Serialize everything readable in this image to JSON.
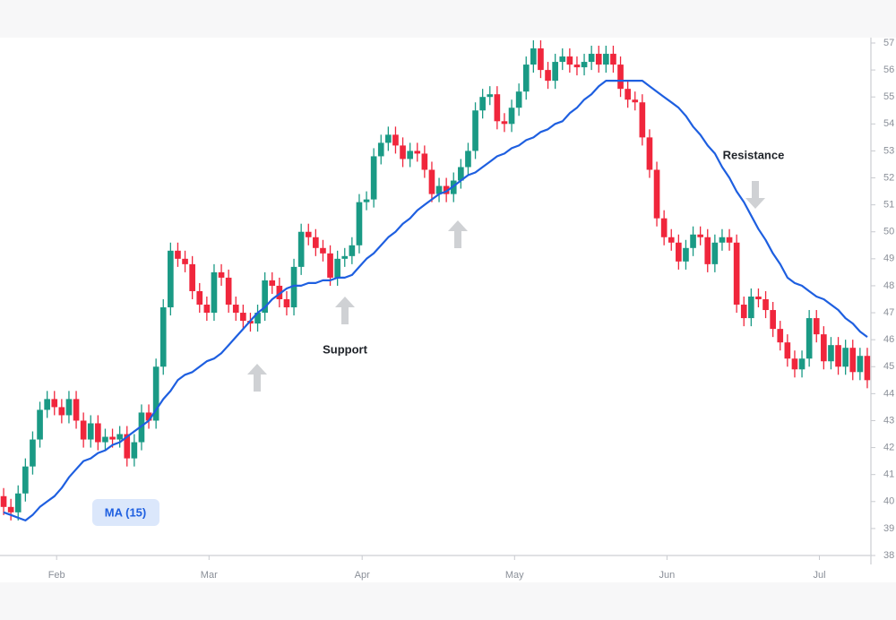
{
  "chart_data": {
    "type": "candlestick",
    "open": [
      40.2,
      39.8,
      39.6,
      40.3,
      41.3,
      42.3,
      43.4,
      43.8,
      43.5,
      43.2,
      43.8,
      43.0,
      42.3,
      42.9,
      42.2,
      42.4,
      42.3,
      42.5,
      41.6,
      42.2,
      43.3,
      43.0,
      45.0,
      47.2,
      49.3,
      49.0,
      48.8,
      47.8,
      47.3,
      47.0,
      48.5,
      48.3,
      47.3,
      47.0,
      46.7,
      46.6,
      47.0,
      48.2,
      48.0,
      47.5,
      47.2,
      48.7,
      50.0,
      49.8,
      49.4,
      49.2,
      48.3,
      49.0,
      49.1,
      49.5,
      51.1,
      51.2,
      52.8,
      53.3,
      53.6,
      53.2,
      52.7,
      53.0,
      52.9,
      52.3,
      51.4,
      51.7,
      51.4,
      51.9,
      52.4,
      53.0,
      54.5,
      55.0,
      55.1,
      54.1,
      54.0,
      54.6,
      55.2,
      56.2,
      56.8,
      56.0,
      55.6,
      56.3,
      56.5,
      56.2,
      56.1,
      56.3,
      56.6,
      56.2,
      56.6,
      56.2,
      55.3,
      54.9,
      54.8,
      53.5,
      52.3,
      50.5,
      49.8,
      49.6,
      48.9,
      49.4,
      49.9,
      49.8,
      48.8,
      49.6,
      49.8,
      49.6,
      47.3,
      46.8,
      47.6,
      47.5,
      47.1,
      46.4,
      45.9,
      45.3,
      44.9,
      45.3,
      46.8,
      46.2,
      45.2,
      45.8,
      45.0,
      45.7,
      44.8,
      45.4
    ],
    "high": [
      40.5,
      40.1,
      40.6,
      41.6,
      42.6,
      43.7,
      44.1,
      44.1,
      43.8,
      44.1,
      44.1,
      43.3,
      43.2,
      43.2,
      42.7,
      42.7,
      42.8,
      42.8,
      42.5,
      43.6,
      43.6,
      45.3,
      47.5,
      49.6,
      49.6,
      49.3,
      49.1,
      48.1,
      47.6,
      48.8,
      48.8,
      48.6,
      47.6,
      47.3,
      47.0,
      47.3,
      48.5,
      48.5,
      48.3,
      47.8,
      49.0,
      50.3,
      50.3,
      50.1,
      49.7,
      49.5,
      49.3,
      49.4,
      49.8,
      51.4,
      51.5,
      53.1,
      53.6,
      53.9,
      53.9,
      53.5,
      53.3,
      53.3,
      53.2,
      52.6,
      52.0,
      52.0,
      52.2,
      52.7,
      53.3,
      54.8,
      55.3,
      55.4,
      55.4,
      54.4,
      54.9,
      55.5,
      56.5,
      57.1,
      57.1,
      56.3,
      56.6,
      56.8,
      56.8,
      56.5,
      56.6,
      56.9,
      56.9,
      56.9,
      56.9,
      56.5,
      55.6,
      55.2,
      55.1,
      53.8,
      52.6,
      50.8,
      50.1,
      49.9,
      49.7,
      50.2,
      50.2,
      50.1,
      49.9,
      50.1,
      50.1,
      49.9,
      47.6,
      47.9,
      47.9,
      47.8,
      47.4,
      46.7,
      46.2,
      45.6,
      45.6,
      47.1,
      47.1,
      46.5,
      46.1,
      46.1,
      46.0,
      46.0,
      45.7,
      45.7
    ],
    "low": [
      39.5,
      39.3,
      39.3,
      40.0,
      41.0,
      42.0,
      43.1,
      43.2,
      42.9,
      42.9,
      42.7,
      42.0,
      42.0,
      41.9,
      41.9,
      42.0,
      42.0,
      41.3,
      41.3,
      41.9,
      42.7,
      42.7,
      44.7,
      46.9,
      48.7,
      48.5,
      47.5,
      47.0,
      46.7,
      46.7,
      48.0,
      47.0,
      46.7,
      46.4,
      46.3,
      46.3,
      46.7,
      47.7,
      47.2,
      46.9,
      46.9,
      48.4,
      49.5,
      49.1,
      48.9,
      48.0,
      48.0,
      48.7,
      48.8,
      49.2,
      50.8,
      50.9,
      52.5,
      53.0,
      52.9,
      52.4,
      52.4,
      52.6,
      52.0,
      51.1,
      51.1,
      51.1,
      51.1,
      51.6,
      52.1,
      52.7,
      54.2,
      54.7,
      53.8,
      53.7,
      53.7,
      54.3,
      54.9,
      55.9,
      55.7,
      55.3,
      55.3,
      56.0,
      55.9,
      55.8,
      55.8,
      56.0,
      55.9,
      55.9,
      55.9,
      55.0,
      54.6,
      54.5,
      53.2,
      52.0,
      50.2,
      49.5,
      49.3,
      48.6,
      48.6,
      49.1,
      49.5,
      48.5,
      48.5,
      49.3,
      49.3,
      47.0,
      46.5,
      46.5,
      47.2,
      46.8,
      46.1,
      45.6,
      45.0,
      44.6,
      44.6,
      45.0,
      45.9,
      44.9,
      44.9,
      44.7,
      44.7,
      44.5,
      44.5,
      44.2
    ],
    "close": [
      39.8,
      39.6,
      40.3,
      41.3,
      42.3,
      43.4,
      43.8,
      43.5,
      43.2,
      43.8,
      43.0,
      42.3,
      42.9,
      42.2,
      42.4,
      42.3,
      42.5,
      41.6,
      42.2,
      43.3,
      43.0,
      45.0,
      47.2,
      49.3,
      49.0,
      48.8,
      47.8,
      47.3,
      47.0,
      48.5,
      48.3,
      47.3,
      47.0,
      46.7,
      46.6,
      47.0,
      48.2,
      48.0,
      47.5,
      47.2,
      48.7,
      50.0,
      49.8,
      49.4,
      49.2,
      48.3,
      49.0,
      49.1,
      49.5,
      51.1,
      51.2,
      52.8,
      53.3,
      53.6,
      53.2,
      52.7,
      53.0,
      52.9,
      52.3,
      51.4,
      51.7,
      51.4,
      51.9,
      52.4,
      53.0,
      54.5,
      55.0,
      55.1,
      54.1,
      54.0,
      54.6,
      55.2,
      56.2,
      56.8,
      56.0,
      55.6,
      56.3,
      56.5,
      56.2,
      56.1,
      56.3,
      56.6,
      56.2,
      56.6,
      56.2,
      55.3,
      54.9,
      54.8,
      53.5,
      52.3,
      50.5,
      49.8,
      49.6,
      48.9,
      49.4,
      49.9,
      49.8,
      48.8,
      49.6,
      49.8,
      49.6,
      47.3,
      46.8,
      47.6,
      47.5,
      47.1,
      46.4,
      45.9,
      45.3,
      44.9,
      45.3,
      46.8,
      46.2,
      45.2,
      45.8,
      45.0,
      45.7,
      44.8,
      45.4,
      44.5
    ],
    "up_color": "#1a9a85",
    "down_color": "#f0263c",
    "ma": {
      "name": "MA (15)",
      "color": "#1e5fe0",
      "values": [
        39.6,
        39.5,
        39.4,
        39.3,
        39.5,
        39.8,
        40.0,
        40.2,
        40.5,
        40.9,
        41.2,
        41.5,
        41.6,
        41.8,
        41.9,
        42.1,
        42.2,
        42.4,
        42.6,
        42.8,
        43.0,
        43.4,
        43.8,
        44.1,
        44.5,
        44.7,
        44.8,
        45.0,
        45.2,
        45.3,
        45.5,
        45.8,
        46.1,
        46.4,
        46.7,
        47.0,
        47.2,
        47.5,
        47.7,
        47.9,
        48.0,
        48.0,
        48.1,
        48.1,
        48.2,
        48.2,
        48.3,
        48.3,
        48.4,
        48.7,
        49.0,
        49.2,
        49.5,
        49.8,
        50.0,
        50.3,
        50.5,
        50.8,
        51.0,
        51.2,
        51.4,
        51.5,
        51.7,
        51.9,
        52.1,
        52.2,
        52.4,
        52.6,
        52.8,
        52.9,
        53.1,
        53.2,
        53.4,
        53.5,
        53.7,
        53.8,
        54.0,
        54.1,
        54.4,
        54.6,
        54.9,
        55.1,
        55.4,
        55.6,
        55.6,
        55.6,
        55.6,
        55.6,
        55.6,
        55.4,
        55.2,
        55.0,
        54.8,
        54.6,
        54.3,
        53.9,
        53.6,
        53.2,
        52.9,
        52.4,
        52.0,
        51.5,
        51.1,
        50.6,
        50.1,
        49.7,
        49.2,
        48.8,
        48.3,
        48.1,
        48.0,
        47.8,
        47.6,
        47.5,
        47.3,
        47.1,
        46.8,
        46.6,
        46.3,
        46.1
      ]
    },
    "annotations": [
      "Support",
      "Resistance"
    ],
    "xlim": [
      -0.5,
      119.5
    ],
    "xticks": [
      {
        "value": 7.3,
        "label": "Feb"
      },
      {
        "value": 28.3,
        "label": "Mar"
      },
      {
        "value": 49.4,
        "label": "Apr"
      },
      {
        "value": 70.4,
        "label": "May"
      },
      {
        "value": 91.4,
        "label": "Jun"
      },
      {
        "value": 112.4,
        "label": "Jul"
      }
    ],
    "ylim": [
      38,
      57
    ],
    "yticks": [
      38,
      39,
      40,
      41,
      42,
      43,
      44,
      45,
      46,
      47,
      48,
      49,
      50,
      51,
      52,
      53,
      54,
      55,
      56,
      57
    ]
  }
}
